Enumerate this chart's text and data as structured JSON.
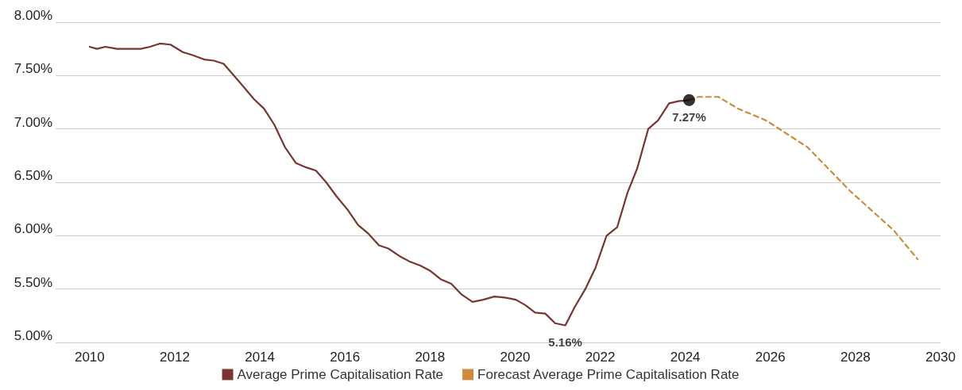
{
  "chart_data": {
    "type": "line",
    "xlim": [
      2009.2,
      2030
    ],
    "xticks": [
      2010,
      2012,
      2014,
      2016,
      2018,
      2020,
      2022,
      2024,
      2026,
      2028,
      2030
    ],
    "ylim": [
      5,
      8
    ],
    "yticks": [
      {
        "value": 5,
        "label": "5.00%"
      },
      {
        "value": 5.5,
        "label": "5.50%"
      },
      {
        "value": 6,
        "label": "6.00%"
      },
      {
        "value": 6.5,
        "label": "6.50%"
      },
      {
        "value": 7,
        "label": "7.00%"
      },
      {
        "value": 7.5,
        "label": "7.50%"
      },
      {
        "value": 8,
        "label": "8.00%"
      }
    ],
    "grid": "y",
    "legend": "bottom",
    "marker": "none",
    "series": [
      {
        "name": "Average Prime Capitalisation Rate",
        "color": "#7a3530",
        "line_style": "solid",
        "x": [
          2010.0,
          2010.17,
          2010.37,
          2010.64,
          2010.92,
          2011.2,
          2011.42,
          2011.65,
          2011.9,
          2012.19,
          2012.43,
          2012.7,
          2012.92,
          2013.15,
          2013.39,
          2013.65,
          2013.86,
          2014.1,
          2014.34,
          2014.59,
          2014.85,
          2015.09,
          2015.32,
          2015.56,
          2015.8,
          2016.07,
          2016.31,
          2016.55,
          2016.8,
          2017.02,
          2017.28,
          2017.51,
          2017.77,
          2018.01,
          2018.26,
          2018.5,
          2018.74,
          2019.0,
          2019.25,
          2019.51,
          2019.76,
          2020.02,
          2020.24,
          2020.47,
          2020.71,
          2020.94,
          2021.18,
          2021.4,
          2021.65,
          2021.89,
          2022.15,
          2022.4,
          2022.64,
          2022.87,
          2023.13,
          2023.36,
          2023.62,
          2023.84,
          2024.09
        ],
        "values": [
          7.77,
          7.75,
          7.77,
          7.75,
          7.75,
          7.75,
          7.77,
          7.8,
          7.79,
          7.72,
          7.69,
          7.65,
          7.64,
          7.61,
          7.5,
          7.38,
          7.28,
          7.19,
          7.04,
          6.83,
          6.68,
          6.64,
          6.61,
          6.5,
          6.37,
          6.24,
          6.1,
          6.02,
          5.91,
          5.88,
          5.81,
          5.76,
          5.72,
          5.67,
          5.59,
          5.55,
          5.45,
          5.38,
          5.4,
          5.43,
          5.42,
          5.4,
          5.35,
          5.28,
          5.27,
          5.18,
          5.16,
          5.33,
          5.5,
          5.7,
          6.0,
          6.08,
          6.4,
          6.63,
          7.0,
          7.08,
          7.24,
          7.26,
          7.27
        ]
      },
      {
        "name": "Forecast Average Prime Capitalisation Rate",
        "color": "#d08a3e",
        "line_style": "dashed",
        "x": [
          2024.09,
          2024.31,
          2024.78,
          2025.24,
          2025.9,
          2026.87,
          2027.87,
          2028.9,
          2029.46
        ],
        "values": [
          7.27,
          7.3,
          7.3,
          7.19,
          7.08,
          6.83,
          6.42,
          6.05,
          5.78
        ]
      },
      {
        "type": "scatter",
        "color": "#000000",
        "marker": "circle",
        "x": [
          2024.09
        ],
        "values": [
          7.27
        ]
      }
    ],
    "annotations": [
      {
        "text": "7.27%",
        "x": 2024.09,
        "y": 7.27
      },
      {
        "text": "5.16%",
        "x": 2021.18,
        "y": 5.16
      }
    ]
  }
}
